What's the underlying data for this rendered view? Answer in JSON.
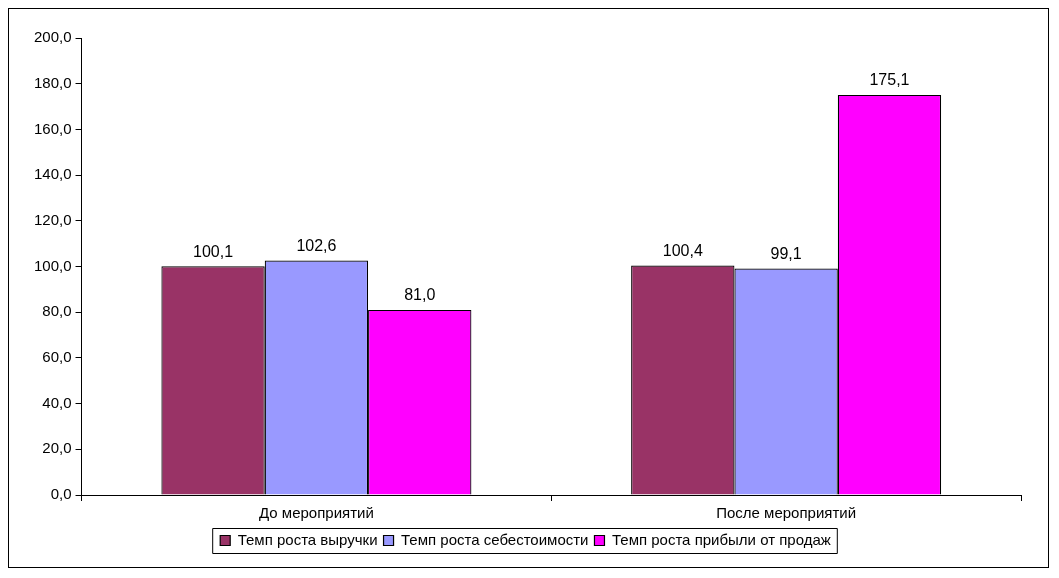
{
  "chart_data": {
    "type": "bar",
    "categories": [
      "До мероприятий",
      "После мероприятий"
    ],
    "series": [
      {
        "name": "Темп роста выручки",
        "color": "#993366",
        "values": [
          100.1,
          100.4
        ],
        "value_labels": [
          "100,1",
          "100,4"
        ]
      },
      {
        "name": "Темп роста себестоимости",
        "color": "#9999ff",
        "values": [
          102.6,
          99.1
        ],
        "value_labels": [
          "102,6",
          "99,1"
        ]
      },
      {
        "name": "Темп роста прибыли от продаж",
        "color": "#ff00ff",
        "values": [
          81.0,
          175.1
        ],
        "value_labels": [
          "81,0",
          "175,1"
        ]
      }
    ],
    "ylim": [
      0,
      200
    ],
    "yticks": [
      {
        "value": 0,
        "label": "0,0"
      },
      {
        "value": 20,
        "label": "20,0"
      },
      {
        "value": 40,
        "label": "40,0"
      },
      {
        "value": 60,
        "label": "60,0"
      },
      {
        "value": 80,
        "label": "80,0"
      },
      {
        "value": 100,
        "label": "100,0"
      },
      {
        "value": 120,
        "label": "120,0"
      },
      {
        "value": 140,
        "label": "140,0"
      },
      {
        "value": 160,
        "label": "160,0"
      },
      {
        "value": 180,
        "label": "180,0"
      },
      {
        "value": 200,
        "label": "200,0"
      }
    ],
    "grid": false,
    "legend": "bottom"
  }
}
